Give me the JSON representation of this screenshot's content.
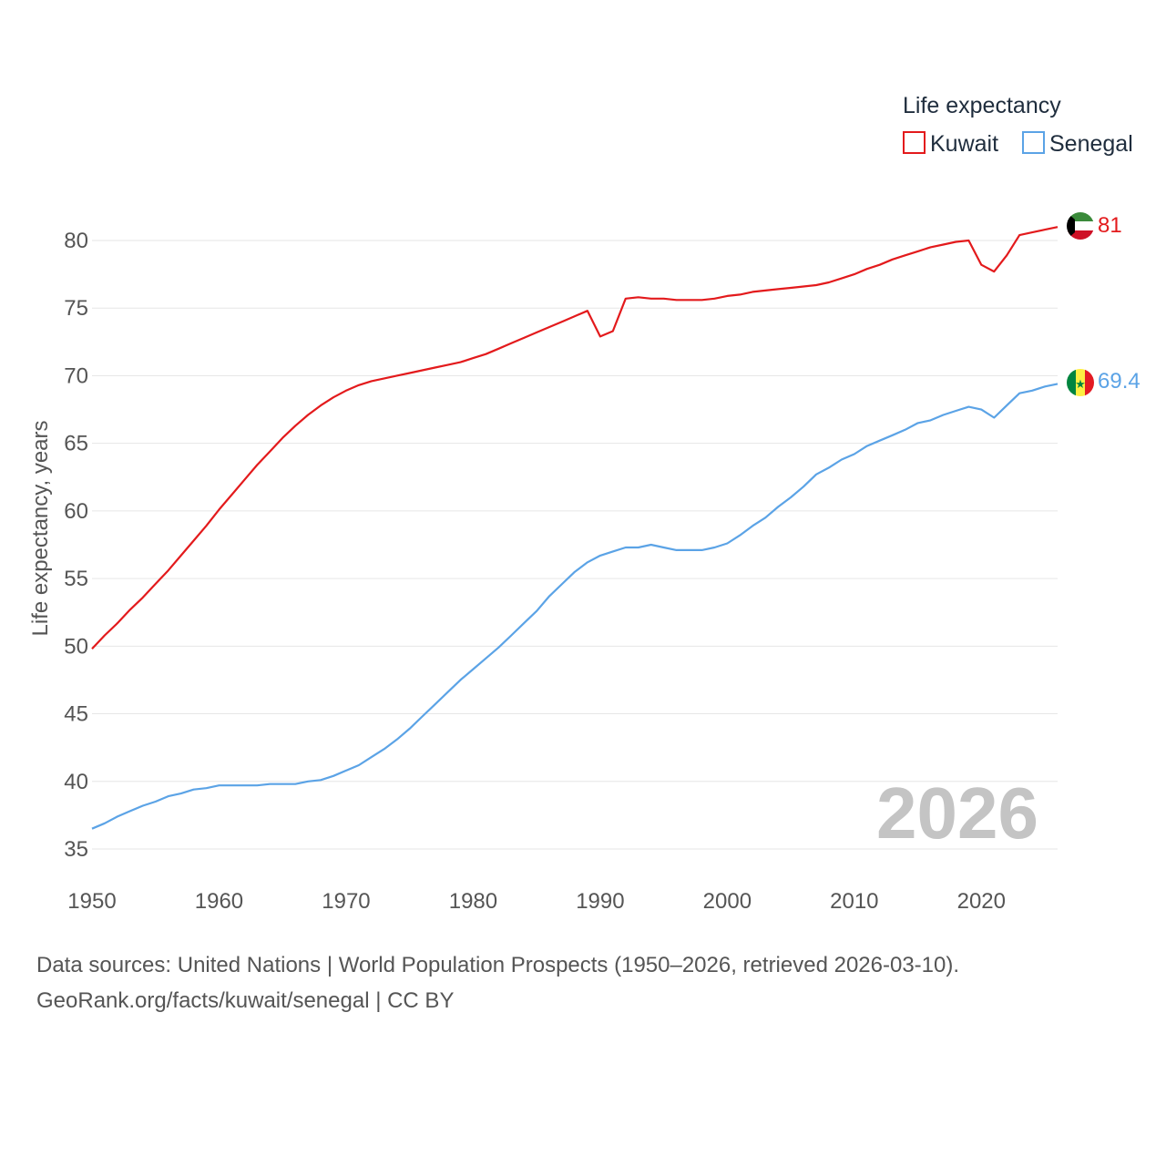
{
  "chart_data": {
    "type": "line",
    "ylabel": "Life expectancy, years",
    "xlabel": "",
    "xlim": [
      1950,
      2026
    ],
    "ylim": [
      34,
      82
    ],
    "x_ticks": [
      1950,
      1960,
      1970,
      1980,
      1990,
      2000,
      2010,
      2020
    ],
    "y_ticks": [
      35,
      40,
      45,
      50,
      55,
      60,
      65,
      70,
      75,
      80
    ],
    "grid": true,
    "legend": {
      "title": "Life expectancy",
      "position": "top-right"
    },
    "watermark_year": "2026",
    "series": [
      {
        "name": "Kuwait",
        "color": "#e31a1c",
        "end_label": "81",
        "flag": "kuwait-flag",
        "x": [
          1950,
          1951,
          1952,
          1953,
          1954,
          1955,
          1956,
          1957,
          1958,
          1959,
          1960,
          1961,
          1962,
          1963,
          1964,
          1965,
          1966,
          1967,
          1968,
          1969,
          1970,
          1971,
          1972,
          1973,
          1974,
          1975,
          1976,
          1977,
          1978,
          1979,
          1980,
          1981,
          1982,
          1983,
          1984,
          1985,
          1986,
          1987,
          1988,
          1989,
          1990,
          1991,
          1992,
          1993,
          1994,
          1995,
          1996,
          1997,
          1998,
          1999,
          2000,
          2001,
          2002,
          2003,
          2004,
          2005,
          2006,
          2007,
          2008,
          2009,
          2010,
          2011,
          2012,
          2013,
          2014,
          2015,
          2016,
          2017,
          2018,
          2019,
          2020,
          2021,
          2022,
          2023,
          2024,
          2025,
          2026
        ],
        "values": [
          49.8,
          50.8,
          51.7,
          52.7,
          53.6,
          54.6,
          55.6,
          56.7,
          57.8,
          58.9,
          60.1,
          61.2,
          62.3,
          63.4,
          64.4,
          65.4,
          66.3,
          67.1,
          67.8,
          68.4,
          68.9,
          69.3,
          69.6,
          69.8,
          70.0,
          70.2,
          70.4,
          70.6,
          70.8,
          71.0,
          71.3,
          71.6,
          72.0,
          72.4,
          72.8,
          73.2,
          73.6,
          74.0,
          74.4,
          74.8,
          72.9,
          73.3,
          75.7,
          75.8,
          75.7,
          75.7,
          75.6,
          75.6,
          75.6,
          75.7,
          75.9,
          76.0,
          76.2,
          76.3,
          76.4,
          76.5,
          76.6,
          76.7,
          76.9,
          77.2,
          77.5,
          77.9,
          78.2,
          78.6,
          78.9,
          79.2,
          79.5,
          79.7,
          79.9,
          80.0,
          78.2,
          77.7,
          78.9,
          80.4,
          80.6,
          80.8,
          81.0
        ]
      },
      {
        "name": "Senegal",
        "color": "#5ba3e6",
        "end_label": "69.4",
        "flag": "senegal-flag",
        "x": [
          1950,
          1951,
          1952,
          1953,
          1954,
          1955,
          1956,
          1957,
          1958,
          1959,
          1960,
          1961,
          1962,
          1963,
          1964,
          1965,
          1966,
          1967,
          1968,
          1969,
          1970,
          1971,
          1972,
          1973,
          1974,
          1975,
          1976,
          1977,
          1978,
          1979,
          1980,
          1981,
          1982,
          1983,
          1984,
          1985,
          1986,
          1987,
          1988,
          1989,
          1990,
          1991,
          1992,
          1993,
          1994,
          1995,
          1996,
          1997,
          1998,
          1999,
          2000,
          2001,
          2002,
          2003,
          2004,
          2005,
          2006,
          2007,
          2008,
          2009,
          2010,
          2011,
          2012,
          2013,
          2014,
          2015,
          2016,
          2017,
          2018,
          2019,
          2020,
          2021,
          2022,
          2023,
          2024,
          2025,
          2026
        ],
        "values": [
          36.5,
          36.9,
          37.4,
          37.8,
          38.2,
          38.5,
          38.9,
          39.1,
          39.4,
          39.5,
          39.7,
          39.7,
          39.7,
          39.7,
          39.8,
          39.8,
          39.8,
          40.0,
          40.1,
          40.4,
          40.8,
          41.2,
          41.8,
          42.4,
          43.1,
          43.9,
          44.8,
          45.7,
          46.6,
          47.5,
          48.3,
          49.1,
          49.9,
          50.8,
          51.7,
          52.6,
          53.7,
          54.6,
          55.5,
          56.2,
          56.7,
          57.0,
          57.3,
          57.3,
          57.5,
          57.3,
          57.1,
          57.1,
          57.1,
          57.3,
          57.6,
          58.2,
          58.9,
          59.5,
          60.3,
          61.0,
          61.8,
          62.7,
          63.2,
          63.8,
          64.2,
          64.8,
          65.2,
          65.6,
          66.0,
          66.5,
          66.7,
          67.1,
          67.4,
          67.7,
          67.5,
          66.9,
          67.8,
          68.7,
          68.9,
          69.2,
          69.4
        ]
      }
    ]
  },
  "footer": {
    "source": "Data sources: United Nations | World Population Prospects (1950–2026, retrieved 2026-03-10).",
    "credit": "GeoRank.org/facts/kuwait/senegal | CC BY"
  }
}
